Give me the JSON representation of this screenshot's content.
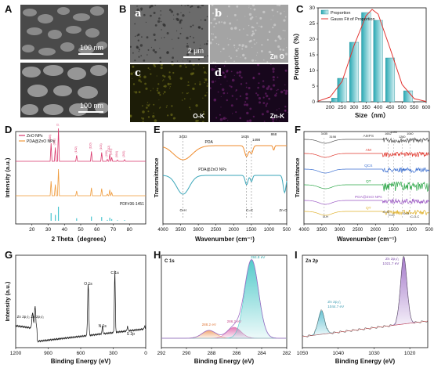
{
  "figure": {
    "panel_labels": [
      "A",
      "B",
      "C",
      "D",
      "E",
      "F",
      "G",
      "H",
      "I"
    ]
  },
  "panel_a": {
    "scale_top": "100 nm",
    "scale_bottom": "100 nm"
  },
  "panel_b": {
    "tiles": [
      {
        "letter": "a",
        "tag": "",
        "color": "#6b6b6b"
      },
      {
        "letter": "b",
        "tag": "Zn  O",
        "color": "#a4a4a4"
      },
      {
        "letter": "c",
        "tag": "O-K",
        "color": "#1c1c07"
      },
      {
        "letter": "d",
        "tag": "Zn-K",
        "color": "#17071c"
      }
    ],
    "scale": "2 μm"
  },
  "chart_data": [
    {
      "panel": "C",
      "type": "bar",
      "title": "",
      "xlabel": "Size（nm）",
      "ylabel": "Proportion（%）",
      "xlim": [
        150,
        600
      ],
      "ylim": [
        0,
        30
      ],
      "x_ticks": [
        200,
        250,
        300,
        350,
        400,
        450,
        500,
        550,
        600
      ],
      "y_ticks": [
        0,
        5,
        10,
        15,
        20,
        25,
        30
      ],
      "categories": [
        225,
        250,
        300,
        350,
        400,
        450,
        525
      ],
      "series": [
        {
          "name": "Proportion",
          "values": [
            1.2,
            7.5,
            19,
            28.5,
            26,
            14,
            3.5
          ]
        },
        {
          "name": "Gauss Fit of Proportion",
          "x": [
            150,
            200,
            250,
            300,
            350,
            375,
            400,
            450,
            500,
            550,
            600
          ],
          "values": [
            0.2,
            1.5,
            6.5,
            18,
            27.5,
            29.5,
            28,
            17,
            5.5,
            1,
            0.1
          ]
        }
      ],
      "legend": "top-left"
    },
    {
      "panel": "D",
      "type": "line",
      "xlabel": "2 Theta（degrees）",
      "ylabel": "Intensity (a.u.)",
      "xlim": [
        10,
        90
      ],
      "x_ticks": [
        20,
        30,
        40,
        50,
        60,
        70,
        80
      ],
      "series": [
        {
          "name": "ZnO NPs",
          "color": "#d9366b",
          "peaks": [
            31.8,
            34.4,
            36.3,
            47.5,
            56.6,
            62.9,
            66.4,
            67.9,
            69.1,
            72.6,
            77.0
          ]
        },
        {
          "name": "PDA@ZnO NPs",
          "color": "#ef9a3a",
          "peaks": [
            31.8,
            34.4,
            36.3,
            47.5,
            56.6,
            62.9,
            66.4,
            67.9,
            69.1
          ]
        },
        {
          "name": "PDF#36-1451",
          "color": "#48c4cf",
          "peaks": [
            31.8,
            34.4,
            36.3,
            47.5,
            56.6,
            62.9,
            66.4,
            67.9,
            69.1,
            72.6,
            77.0
          ]
        }
      ],
      "peak_labels": [
        "(100)",
        "(002)",
        "(101)",
        "(102)",
        "(110)",
        "(103)",
        "(200)",
        "(112)",
        "(201)",
        "(004)",
        "(202)"
      ],
      "reference_label": "PDF#36-1451",
      "legend": "top-left"
    },
    {
      "panel": "E",
      "type": "line",
      "xlabel": "Wavenumber (cm⁻¹)",
      "ylabel": "Transmittance",
      "xlim": [
        4000,
        500
      ],
      "x_ticks": [
        4000,
        3500,
        3000,
        2500,
        2000,
        1500,
        1000,
        500
      ],
      "series": [
        {
          "name": "PDA",
          "color": "#ef8b2c"
        },
        {
          "name": "PDA@ZnO NPs",
          "color": "#3aa6b9"
        }
      ],
      "annotations": [
        "3433",
        "1635",
        "1498",
        "868",
        "O-H",
        "C=C",
        "Zn-O"
      ]
    },
    {
      "panel": "F",
      "type": "line",
      "xlabel": "Wavenumber (cm⁻¹)",
      "ylabel": "Transmittance",
      "xlim": [
        4000,
        500
      ],
      "x_ticks": [
        4000,
        3500,
        3000,
        2500,
        2000,
        1500,
        1000,
        500
      ],
      "series": [
        {
          "name": "AMPS",
          "color": "#555555"
        },
        {
          "name": "AM",
          "color": "#e0382e"
        },
        {
          "name": "QCS",
          "color": "#3b6fd1"
        },
        {
          "name": "QT",
          "color": "#2fa84a"
        },
        {
          "name": "PDA@ZnO NPs",
          "color": "#9b59c4"
        },
        {
          "name": "QT",
          "color": "#e0b22e"
        }
      ],
      "annotations": [
        "3435",
        "3198",
        "1652",
        "1490",
        "1260",
        "1040",
        "O-H",
        "C=O",
        "C=C",
        "S=O",
        "C-O-C"
      ]
    },
    {
      "panel": "G",
      "type": "line",
      "xlabel": "Binding Energy (eV)",
      "ylabel": "Intensity (a.u.)",
      "xlim": [
        1200,
        0
      ],
      "x_ticks": [
        1200,
        900,
        600,
        300,
        0
      ],
      "series": [
        {
          "name": "survey",
          "color": "#111111"
        }
      ],
      "annotations": [
        "Zn 2p₁/₂",
        "Zn 2p₃/₂",
        "O 1s",
        "N 1s",
        "C 1s",
        "S 2p"
      ]
    },
    {
      "panel": "H",
      "type": "area",
      "title": "C 1s",
      "xlabel": "Binding Energy (eV)",
      "ylabel": "",
      "xlim": [
        292,
        282
      ],
      "x_ticks": [
        292,
        290,
        288,
        286,
        284,
        282
      ],
      "peaks": [
        {
          "label": "288.2 eV",
          "center": 288.2,
          "height": 0.1,
          "color": "#f0a36b"
        },
        {
          "label": "286.2 eV",
          "center": 286.2,
          "height": 0.14,
          "color": "#e276b4"
        },
        {
          "label": "284.8 eV",
          "center": 284.8,
          "height": 1.0,
          "color": "#4cc8c8"
        }
      ]
    },
    {
      "panel": "I",
      "type": "area",
      "title": "Zn 2p",
      "xlabel": "Binding Energy (eV)",
      "ylabel": "",
      "xlim": [
        1050,
        1015
      ],
      "x_ticks": [
        1050,
        1040,
        1030,
        1020
      ],
      "peaks": [
        {
          "label": "Zn 2p₁/₂",
          "value_label": "1044.7 eV",
          "center": 1044.7,
          "height": 0.35,
          "color": "#5bbfd0"
        },
        {
          "label": "Zn 2p₃/₂",
          "value_label": "1021.7 eV",
          "center": 1021.7,
          "height": 1.0,
          "color": "#9a6ac4"
        }
      ]
    }
  ]
}
